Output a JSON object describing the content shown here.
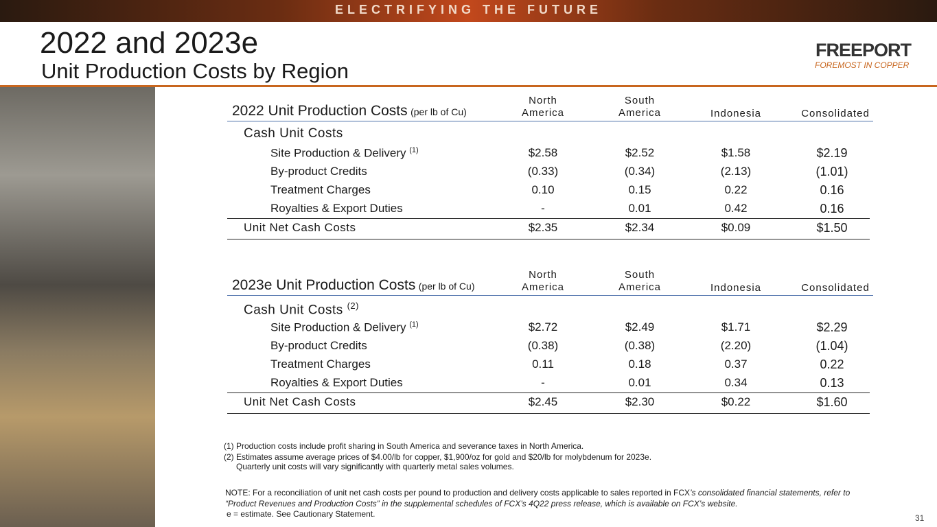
{
  "banner": "ELECTRIFYING THE FUTURE",
  "header": {
    "title": "2022 and 2023e",
    "subtitle": "Unit Production Costs by Region"
  },
  "logo": {
    "name": "FREEPORT",
    "tagline": "FOREMOST IN COPPER"
  },
  "tables": [
    {
      "title": "2022 Unit Production Costs",
      "unit": "(per lb of Cu)",
      "columns": [
        "North America",
        "South America",
        "Indonesia",
        "Consolidated"
      ],
      "section": "Cash Unit Costs",
      "rows": [
        {
          "label": "Site Production & Delivery",
          "note": "(1)",
          "values": [
            "$2.58",
            "$2.52",
            "$1.58",
            "$2.19"
          ]
        },
        {
          "label": "By-product Credits",
          "values": [
            "(0.33)",
            "(0.34)",
            "(2.13)",
            "(1.01)"
          ]
        },
        {
          "label": "Treatment Charges",
          "values": [
            "0.10",
            "0.15",
            "0.22",
            "0.16"
          ]
        },
        {
          "label": "Royalties & Export Duties",
          "values": [
            "-",
            "0.01",
            "0.42",
            "0.16"
          ]
        }
      ],
      "total": {
        "label": "Unit Net Cash Costs",
        "values": [
          "$2.35",
          "$2.34",
          "$0.09",
          "$1.50"
        ]
      }
    },
    {
      "title": "2023e Unit Production Costs",
      "unit": "(per lb of Cu)",
      "columns": [
        "North America",
        "South America",
        "Indonesia",
        "Consolidated"
      ],
      "section": "Cash Unit Costs",
      "section_note": "(2)",
      "rows": [
        {
          "label": "Site Production & Delivery",
          "note": "(1)",
          "values": [
            "$2.72",
            "$2.49",
            "$1.71",
            "$2.29"
          ]
        },
        {
          "label": "By-product Credits",
          "values": [
            "(0.38)",
            "(0.38)",
            "(2.20)",
            "(1.04)"
          ]
        },
        {
          "label": "Treatment Charges",
          "values": [
            "0.11",
            "0.18",
            "0.37",
            "0.22"
          ]
        },
        {
          "label": "Royalties & Export Duties",
          "values": [
            "-",
            "0.01",
            "0.34",
            "0.13"
          ]
        }
      ],
      "total": {
        "label": "Unit Net Cash Costs",
        "values": [
          "$2.45",
          "$2.30",
          "$0.22",
          "$1.60"
        ]
      }
    }
  ],
  "footnotes": [
    "(1) Production costs include profit sharing in South America and severance taxes in North America.",
    "(2) Estimates assume average prices of $4.00/lb for copper, $1,900/oz for gold and $20/lb for molybdenum for 2023e.",
    "Quarterly unit costs will vary significantly with quarterly metal sales volumes."
  ],
  "note": {
    "text": "NOTE: For a reconciliation of unit net cash costs per pound to production and delivery costs applicable to sales reported in FCX",
    "italic": "’s consolidated financial statements, refer to “Product Revenues and Production Costs” in the supplemental schedules of FCX’s 4Q22 press release, which is available on FCX’s website."
  },
  "estimate": "e = estimate. See Cautionary Statement.",
  "page_number": "31"
}
